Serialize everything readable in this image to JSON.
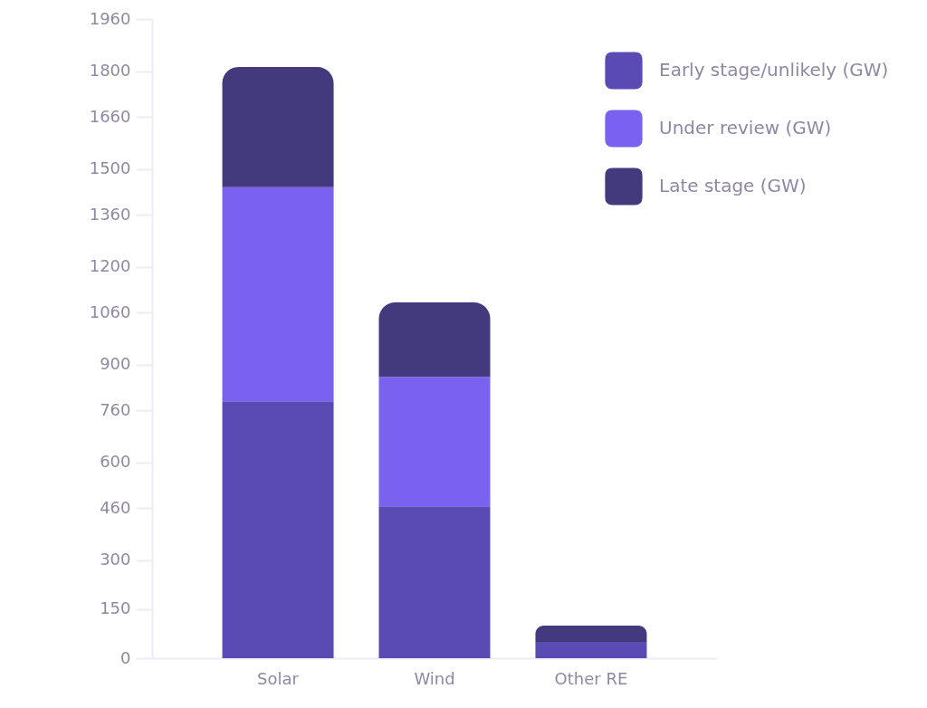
{
  "chart_data": {
    "type": "bar",
    "stacked": true,
    "categories": [
      "Solar",
      "Wind",
      "Other RE"
    ],
    "series": [
      {
        "name": "Early stage/unlikely (GW)",
        "color": "#5a4bb4",
        "values": [
          788,
          466,
          50
        ]
      },
      {
        "name": "Under review (GW)",
        "color": "#7b61f0",
        "values": [
          656,
          397,
          0
        ]
      },
      {
        "name": "Late stage (GW)",
        "color": "#433a7e",
        "values": [
          369,
          228,
          50
        ]
      }
    ],
    "ylim": [
      0,
      1960
    ],
    "yticks": [
      0,
      150,
      300,
      460,
      600,
      760,
      900,
      1060,
      1200,
      1360,
      1500,
      1660,
      1800,
      1960
    ],
    "grid": false,
    "legend": "top right"
  }
}
